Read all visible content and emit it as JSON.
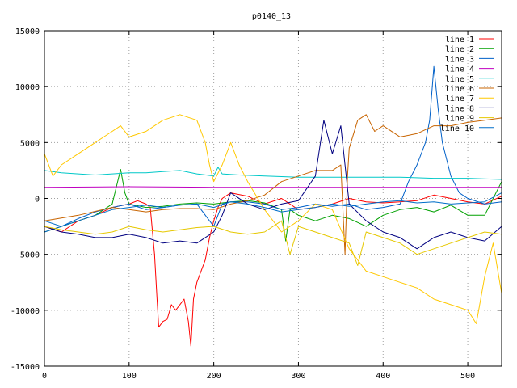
{
  "chart_data": {
    "type": "line",
    "title": "p0140_13",
    "xlabel": "",
    "ylabel": "",
    "xlim": [
      0,
      540
    ],
    "ylim": [
      -15000,
      15000
    ],
    "x_ticks": [
      0,
      100,
      200,
      300,
      400,
      500
    ],
    "y_ticks": [
      -15000,
      -10000,
      -5000,
      0,
      5000,
      10000,
      15000
    ],
    "x_tick_labels": [
      "0",
      "100",
      "200",
      "300",
      "400",
      "500"
    ],
    "y_tick_labels": [
      "-15000",
      "-10000",
      "-5000",
      "0",
      "5000",
      "10000",
      "15000"
    ],
    "grid": true,
    "legend_position": "top-right",
    "series": [
      {
        "name": "line 1",
        "color": "#ff0000",
        "points": [
          [
            0,
            -2500
          ],
          [
            20,
            -3000
          ],
          [
            40,
            -2000
          ],
          [
            60,
            -1500
          ],
          [
            80,
            -800
          ],
          [
            100,
            -500
          ],
          [
            110,
            -200
          ],
          [
            120,
            -500
          ],
          [
            125,
            -800
          ],
          [
            130,
            -5000
          ],
          [
            133,
            -9000
          ],
          [
            135,
            -11500
          ],
          [
            140,
            -11000
          ],
          [
            145,
            -10800
          ],
          [
            150,
            -9500
          ],
          [
            155,
            -10000
          ],
          [
            160,
            -9500
          ],
          [
            165,
            -9000
          ],
          [
            170,
            -11000
          ],
          [
            173,
            -13200
          ],
          [
            176,
            -9000
          ],
          [
            180,
            -7500
          ],
          [
            185,
            -6500
          ],
          [
            190,
            -5500
          ],
          [
            195,
            -3500
          ],
          [
            200,
            -2000
          ],
          [
            205,
            -800
          ],
          [
            210,
            0
          ],
          [
            220,
            500
          ],
          [
            240,
            200
          ],
          [
            260,
            -500
          ],
          [
            280,
            0
          ],
          [
            300,
            -1000
          ],
          [
            320,
            -800
          ],
          [
            340,
            -500
          ],
          [
            360,
            0
          ],
          [
            380,
            -300
          ],
          [
            400,
            -400
          ],
          [
            420,
            -300
          ],
          [
            440,
            -200
          ],
          [
            460,
            300
          ],
          [
            480,
            0
          ],
          [
            500,
            -300
          ],
          [
            520,
            -500
          ],
          [
            540,
            200
          ]
        ]
      },
      {
        "name": "line 2",
        "color": "#00a000",
        "points": [
          [
            0,
            -3000
          ],
          [
            20,
            -2500
          ],
          [
            40,
            -2000
          ],
          [
            60,
            -1500
          ],
          [
            80,
            -500
          ],
          [
            90,
            2600
          ],
          [
            95,
            500
          ],
          [
            100,
            -500
          ],
          [
            120,
            -800
          ],
          [
            140,
            -700
          ],
          [
            160,
            -500
          ],
          [
            180,
            -400
          ],
          [
            200,
            -500
          ],
          [
            220,
            -300
          ],
          [
            240,
            -200
          ],
          [
            260,
            -400
          ],
          [
            280,
            -1000
          ],
          [
            285,
            -3800
          ],
          [
            290,
            -1000
          ],
          [
            300,
            -1500
          ],
          [
            320,
            -2000
          ],
          [
            340,
            -1500
          ],
          [
            360,
            -1800
          ],
          [
            380,
            -2500
          ],
          [
            400,
            -1500
          ],
          [
            420,
            -1000
          ],
          [
            440,
            -800
          ],
          [
            460,
            -1200
          ],
          [
            480,
            -600
          ],
          [
            500,
            -1500
          ],
          [
            520,
            -1500
          ],
          [
            540,
            1500
          ]
        ]
      },
      {
        "name": "line 3",
        "color": "#0060c8",
        "points": [
          [
            0,
            -3000
          ],
          [
            20,
            -2500
          ],
          [
            40,
            -1800
          ],
          [
            60,
            -1200
          ],
          [
            80,
            -800
          ],
          [
            100,
            -500
          ],
          [
            120,
            -1000
          ],
          [
            140,
            -800
          ],
          [
            160,
            -600
          ],
          [
            180,
            -500
          ],
          [
            200,
            -2500
          ],
          [
            210,
            -500
          ],
          [
            220,
            -300
          ],
          [
            240,
            -300
          ],
          [
            260,
            -500
          ],
          [
            280,
            -1000
          ],
          [
            300,
            -800
          ],
          [
            320,
            -500
          ],
          [
            340,
            -700
          ],
          [
            360,
            -500
          ],
          [
            380,
            -1000
          ],
          [
            400,
            -800
          ],
          [
            420,
            -500
          ],
          [
            430,
            1500
          ],
          [
            440,
            3000
          ],
          [
            450,
            5000
          ],
          [
            455,
            7000
          ],
          [
            460,
            11800
          ],
          [
            465,
            8000
          ],
          [
            470,
            5000
          ],
          [
            480,
            2000
          ],
          [
            490,
            500
          ],
          [
            500,
            0
          ],
          [
            520,
            -500
          ],
          [
            540,
            -300
          ]
        ]
      },
      {
        "name": "line 4",
        "color": "#c000c0",
        "points": [
          [
            0,
            1000
          ],
          [
            100,
            1050
          ],
          [
            200,
            1000
          ],
          [
            300,
            1000
          ],
          [
            400,
            1000
          ],
          [
            500,
            1000
          ],
          [
            540,
            1000
          ]
        ]
      },
      {
        "name": "line 5",
        "color": "#00c8c8",
        "points": [
          [
            0,
            2500
          ],
          [
            20,
            2300
          ],
          [
            40,
            2200
          ],
          [
            60,
            2100
          ],
          [
            80,
            2200
          ],
          [
            100,
            2300
          ],
          [
            120,
            2300
          ],
          [
            140,
            2400
          ],
          [
            160,
            2500
          ],
          [
            180,
            2200
          ],
          [
            200,
            2000
          ],
          [
            205,
            2800
          ],
          [
            210,
            2200
          ],
          [
            230,
            2100
          ],
          [
            260,
            2000
          ],
          [
            300,
            1900
          ],
          [
            340,
            1900
          ],
          [
            380,
            1900
          ],
          [
            420,
            1900
          ],
          [
            460,
            1800
          ],
          [
            500,
            1800
          ],
          [
            540,
            1700
          ]
        ]
      },
      {
        "name": "line 6",
        "color": "#c86400",
        "points": [
          [
            0,
            -2000
          ],
          [
            40,
            -1500
          ],
          [
            80,
            -800
          ],
          [
            100,
            -1000
          ],
          [
            120,
            -1200
          ],
          [
            140,
            -1000
          ],
          [
            160,
            -900
          ],
          [
            180,
            -900
          ],
          [
            200,
            -1000
          ],
          [
            220,
            -500
          ],
          [
            240,
            -200
          ],
          [
            260,
            300
          ],
          [
            280,
            1500
          ],
          [
            300,
            2000
          ],
          [
            320,
            2500
          ],
          [
            340,
            2500
          ],
          [
            350,
            3000
          ],
          [
            355,
            -5000
          ],
          [
            358,
            2000
          ],
          [
            360,
            4500
          ],
          [
            370,
            7000
          ],
          [
            380,
            7500
          ],
          [
            390,
            6000
          ],
          [
            400,
            6500
          ],
          [
            420,
            5500
          ],
          [
            440,
            5800
          ],
          [
            460,
            6500
          ],
          [
            480,
            6500
          ],
          [
            500,
            6800
          ],
          [
            520,
            7000
          ],
          [
            540,
            7200
          ]
        ]
      },
      {
        "name": "line 7",
        "color": "#ffc800",
        "points": [
          [
            0,
            4000
          ],
          [
            10,
            2000
          ],
          [
            20,
            3000
          ],
          [
            40,
            4000
          ],
          [
            60,
            5000
          ],
          [
            80,
            6000
          ],
          [
            90,
            6500
          ],
          [
            100,
            5500
          ],
          [
            120,
            6000
          ],
          [
            140,
            7000
          ],
          [
            160,
            7500
          ],
          [
            180,
            7000
          ],
          [
            185,
            6000
          ],
          [
            190,
            5000
          ],
          [
            195,
            3000
          ],
          [
            200,
            1500
          ],
          [
            210,
            3000
          ],
          [
            220,
            5000
          ],
          [
            230,
            3000
          ],
          [
            240,
            1500
          ],
          [
            260,
            -1000
          ],
          [
            280,
            -3000
          ],
          [
            300,
            -2000
          ],
          [
            320,
            -500
          ],
          [
            340,
            -1000
          ],
          [
            360,
            -4500
          ],
          [
            380,
            -6500
          ],
          [
            400,
            -7000
          ],
          [
            420,
            -7500
          ],
          [
            440,
            -8000
          ],
          [
            460,
            -9000
          ],
          [
            480,
            -9500
          ],
          [
            500,
            -10000
          ],
          [
            510,
            -11200
          ],
          [
            520,
            -7000
          ],
          [
            530,
            -4000
          ],
          [
            540,
            -8500
          ]
        ]
      },
      {
        "name": "line 8",
        "color": "#000080",
        "points": [
          [
            0,
            -2500
          ],
          [
            20,
            -3000
          ],
          [
            40,
            -3200
          ],
          [
            60,
            -3500
          ],
          [
            80,
            -3500
          ],
          [
            100,
            -3200
          ],
          [
            120,
            -3500
          ],
          [
            140,
            -4000
          ],
          [
            160,
            -3800
          ],
          [
            180,
            -4000
          ],
          [
            200,
            -3000
          ],
          [
            210,
            -1500
          ],
          [
            220,
            500
          ],
          [
            240,
            -500
          ],
          [
            260,
            -1000
          ],
          [
            280,
            -500
          ],
          [
            300,
            -200
          ],
          [
            320,
            2000
          ],
          [
            330,
            7000
          ],
          [
            340,
            4000
          ],
          [
            350,
            6500
          ],
          [
            360,
            -500
          ],
          [
            380,
            -2000
          ],
          [
            400,
            -3000
          ],
          [
            420,
            -3500
          ],
          [
            440,
            -4500
          ],
          [
            460,
            -3500
          ],
          [
            480,
            -3000
          ],
          [
            500,
            -3500
          ],
          [
            520,
            -3800
          ],
          [
            540,
            -2500
          ]
        ]
      },
      {
        "name": "line 9",
        "color": "#e6c800",
        "points": [
          [
            0,
            -2500
          ],
          [
            20,
            -2800
          ],
          [
            40,
            -3000
          ],
          [
            60,
            -3200
          ],
          [
            80,
            -3000
          ],
          [
            100,
            -2500
          ],
          [
            120,
            -2800
          ],
          [
            140,
            -3000
          ],
          [
            160,
            -2800
          ],
          [
            180,
            -2600
          ],
          [
            200,
            -2500
          ],
          [
            220,
            -3000
          ],
          [
            240,
            -3200
          ],
          [
            260,
            -3000
          ],
          [
            280,
            -2000
          ],
          [
            290,
            -5000
          ],
          [
            300,
            -2500
          ],
          [
            320,
            -3000
          ],
          [
            340,
            -3500
          ],
          [
            360,
            -4000
          ],
          [
            370,
            -6000
          ],
          [
            380,
            -3000
          ],
          [
            400,
            -3500
          ],
          [
            420,
            -4000
          ],
          [
            440,
            -5000
          ],
          [
            460,
            -4500
          ],
          [
            480,
            -4000
          ],
          [
            500,
            -3500
          ],
          [
            520,
            -3000
          ],
          [
            540,
            -3200
          ]
        ]
      },
      {
        "name": "line 10",
        "color": "#006ec8",
        "points": [
          [
            0,
            -2000
          ],
          [
            20,
            -2500
          ],
          [
            40,
            -2000
          ],
          [
            60,
            -1500
          ],
          [
            80,
            -1000
          ],
          [
            100,
            -800
          ],
          [
            120,
            -600
          ],
          [
            140,
            -800
          ],
          [
            160,
            -600
          ],
          [
            180,
            -500
          ],
          [
            200,
            -800
          ],
          [
            220,
            -300
          ],
          [
            240,
            -500
          ],
          [
            260,
            -800
          ],
          [
            280,
            -1200
          ],
          [
            300,
            -1000
          ],
          [
            320,
            -800
          ],
          [
            340,
            -500
          ],
          [
            360,
            -700
          ],
          [
            380,
            -500
          ],
          [
            400,
            -300
          ],
          [
            420,
            -200
          ],
          [
            440,
            -400
          ],
          [
            460,
            -300
          ],
          [
            480,
            -500
          ],
          [
            500,
            -400
          ],
          [
            520,
            -300
          ],
          [
            540,
            500
          ]
        ]
      }
    ]
  }
}
